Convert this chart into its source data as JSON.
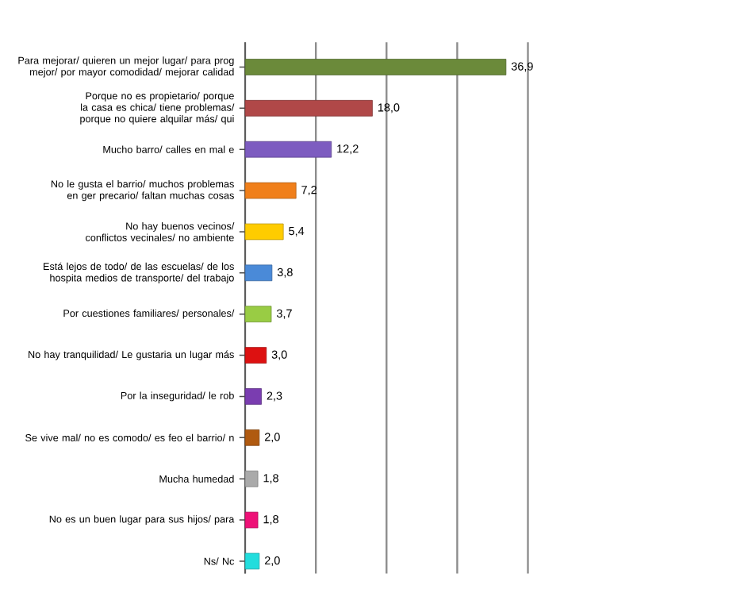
{
  "chart_data": {
    "type": "bar",
    "orientation": "horizontal",
    "tick_labels": "y",
    "grid": "x",
    "categories": [
      "Para mejorar/ quieren un mejor lugar/ para prog mejor/ por mayor comodidad/ mejorar calidad",
      "Porque no es propietario/ porque la casa es chica/ tiene problemas/ porque no quiere alquilar más/ qui",
      "Mucho barro/ calles en mal e",
      "No le gusta el barrio/ muchos problemas en ger precario/ faltan muchas cosas",
      "No hay buenos vecinos/ conflictos vecinales/ no ambiente",
      "Está lejos de todo/ de las escuelas/ de los hospita medios de transporte/ del trabajo",
      "Por cuestiones familiares/ personales/",
      "No hay tranquilidad/ Le gustaria un lugar más",
      "Por la inseguridad/ le rob",
      "Se vive mal/ no es comodo/ es feo el barrio/ n",
      "Mucha humedad",
      "No es un buen lugar para sus hijos/ para",
      "Ns/ Nc"
    ],
    "values": [
      36.9,
      18.0,
      12.2,
      7.2,
      5.4,
      3.8,
      3.7,
      3.0,
      2.3,
      2.0,
      1.8,
      1.8,
      2.0
    ],
    "value_labels": [
      "36,9",
      "18,0",
      "12,2",
      "7,2",
      "5,4",
      "3,8",
      "3,7",
      "3,0",
      "2,3",
      "2,0",
      "1,8",
      "1,8",
      "2,0"
    ],
    "colors": [
      "#6b8a3a",
      "#b04848",
      "#7d5cc0",
      "#f07f1a",
      "#ffcc00",
      "#4a8ad8",
      "#99cc44",
      "#dd1111",
      "#7a3db0",
      "#b05a10",
      "#aaaaaa",
      "#ee1177",
      "#22dddd"
    ]
  }
}
